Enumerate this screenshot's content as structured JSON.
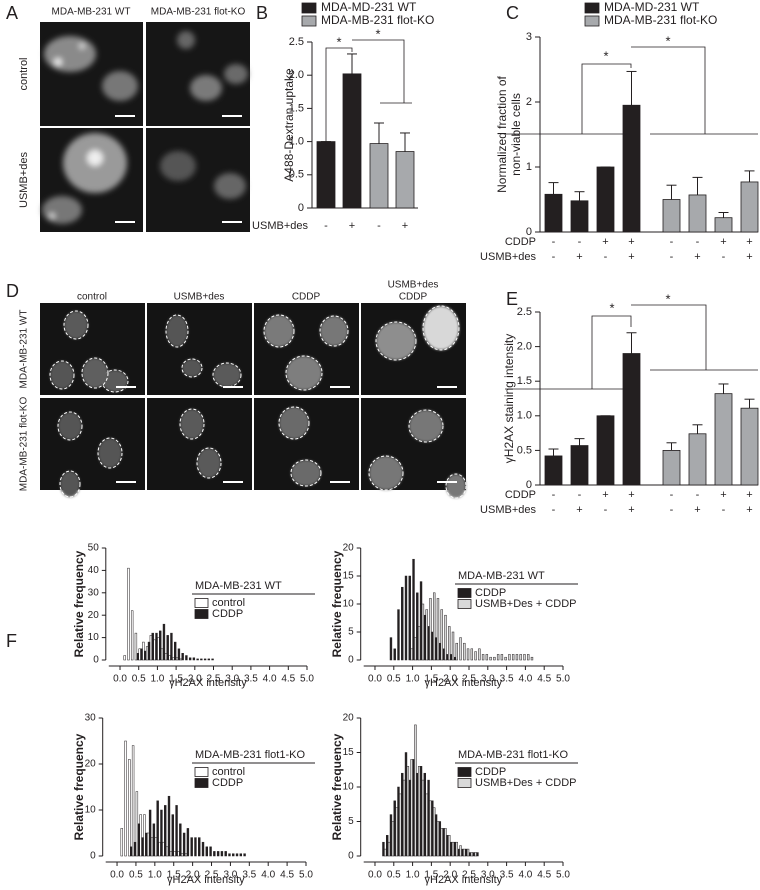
{
  "panel_letters": [
    "A",
    "B",
    "C",
    "D",
    "E",
    "F"
  ],
  "image_panels": [
    {
      "columns": [
        "MDA-MB-231 WT",
        "MDA-MB-231 flot-KO"
      ],
      "rows": [
        "control",
        "USMB+des"
      ]
    },
    {
      "columns": [
        "control",
        "USMB+des",
        "CDDP",
        [
          "USMB+des",
          "CDDP"
        ]
      ],
      "rows": [
        "MDA-MB-231 WT",
        "MDA-MB-231 flot-KO"
      ]
    }
  ],
  "chart_data": [
    {
      "type": "bar",
      "ylabel": "A488-Dextran uptake",
      "series": [
        {
          "name": "MDA-MD-231 WT",
          "color": "#231f20",
          "values": [
            1.0,
            2.02
          ],
          "errors": [
            0,
            0.3
          ]
        },
        {
          "name": "MDA-MB-231 flot-KO",
          "color": "#a7a9ac",
          "values": [
            0.97,
            0.85
          ],
          "errors": [
            0.31,
            0.28
          ]
        }
      ],
      "conditions": [
        {
          "name": "USMB+des",
          "values": [
            "-",
            "+",
            "-",
            "+"
          ]
        }
      ],
      "ylim": [
        0,
        2.5
      ],
      "yticks": [
        0,
        0.5,
        {
          "value": 1,
          "label": "1.0"
        },
        1.5,
        {
          "value": 2,
          "label": "2.0"
        },
        2.5
      ],
      "annotations": [
        "*",
        "*"
      ]
    },
    {
      "type": "bar",
      "ylabel": [
        "Normalized fraction of",
        "non-viable cells"
      ],
      "series": [
        {
          "name": "MDA-MD-231 WT",
          "color": "#231f20",
          "values": [
            0.58,
            0.48,
            1.0,
            1.95
          ],
          "errors": [
            0.18,
            0.14,
            0,
            0.52
          ]
        },
        {
          "name": "MDA-MB-231 flot-KO",
          "color": "#a7a9ac",
          "values": [
            0.5,
            0.57,
            0.22,
            0.77
          ],
          "errors": [
            0.22,
            0.27,
            0.08,
            0.17
          ]
        }
      ],
      "conditions": [
        {
          "name": "CDDP",
          "values": [
            "-",
            "-",
            "+",
            "+",
            "-",
            "-",
            "+",
            "+"
          ]
        },
        {
          "name": "USMB+des",
          "values": [
            "-",
            "+",
            "-",
            "+",
            "-",
            "+",
            "-",
            "+"
          ]
        }
      ],
      "ylim": [
        0,
        3
      ],
      "yticks": [
        0,
        1,
        2,
        3
      ],
      "annotations": [
        "*",
        "*"
      ]
    },
    {
      "type": "bar",
      "ylabel": "γH2AX staining intensity",
      "series": [
        {
          "color": "#231f20",
          "values": [
            0.42,
            0.57,
            1.0,
            1.9
          ],
          "errors": [
            0.1,
            0.1,
            0,
            0.3
          ]
        },
        {
          "color": "#a7a9ac",
          "values": [
            0.5,
            0.74,
            1.32,
            1.11
          ],
          "errors": [
            0.11,
            0.13,
            0.14,
            0.13
          ]
        }
      ],
      "conditions": [
        {
          "name": "CDDP",
          "values": [
            "-",
            "-",
            "+",
            "+",
            "-",
            "-",
            "+",
            "+"
          ]
        },
        {
          "name": "USMB+des",
          "values": [
            "-",
            "+",
            "-",
            "+",
            "-",
            "+",
            "-",
            "+"
          ]
        }
      ],
      "ylim": [
        0,
        2.5
      ],
      "yticks": [
        0,
        0.5,
        {
          "value": 1,
          "label": "1.0"
        },
        1.5,
        {
          "value": 2,
          "label": "2.0"
        },
        2.5
      ],
      "annotations": [
        "*",
        "*"
      ]
    },
    {
      "type": "histogram",
      "legend_title": "MDA-MB-231 WT",
      "xlabel": "γH2AX intensity",
      "ylabel": "Relative frequency",
      "bins": [
        0,
        0.1,
        0.2,
        0.3,
        0.4,
        0.5,
        0.6,
        0.7,
        0.8,
        0.9,
        1.0,
        1.1,
        1.2,
        1.3,
        1.4,
        1.5,
        1.6,
        1.7,
        1.8,
        1.9,
        2.0,
        2.1,
        2.2,
        2.3,
        2.4,
        2.5,
        2.6,
        2.7,
        2.8,
        2.9,
        3.0,
        3.1,
        3.2,
        3.3,
        3.4,
        3.5,
        3.6,
        3.7,
        3.8,
        3.9,
        4.0,
        4.1,
        4.2,
        4.3,
        4.4,
        4.5
      ],
      "series": [
        {
          "name": "control",
          "color": "#ffffff",
          "values": [
            0,
            2,
            41,
            22,
            12,
            5,
            8,
            6,
            11,
            9,
            10,
            5,
            3,
            2,
            1,
            1,
            0.5,
            0,
            0,
            0,
            0,
            0,
            0,
            0,
            0,
            0,
            0,
            0,
            0,
            0,
            0,
            0,
            0,
            0,
            0,
            0,
            0,
            0,
            0,
            0,
            0,
            0,
            0,
            0,
            0
          ]
        },
        {
          "name": "CDDP",
          "color": "#231f20",
          "values": [
            0,
            0,
            0,
            0,
            3,
            5,
            4,
            8,
            12,
            12,
            13,
            16,
            11,
            12,
            8,
            5,
            3,
            2,
            1,
            1,
            0.5,
            0.5,
            0.5,
            0.5,
            0.5,
            0,
            0,
            0,
            0,
            0,
            0,
            0,
            0,
            0,
            0,
            0,
            0,
            0,
            0,
            0,
            0,
            0,
            0,
            0,
            0
          ]
        }
      ],
      "xlim": [
        -0.3,
        5
      ],
      "xticks": [
        {
          "value": 0,
          "label": "0.0"
        },
        0.5,
        {
          "value": 1,
          "label": "1.0"
        },
        1.5,
        {
          "value": 2,
          "label": "2.0"
        },
        2.5,
        {
          "value": 3,
          "label": "3.0"
        },
        3.5,
        {
          "value": 4,
          "label": "4.0"
        },
        4.5,
        {
          "value": 5,
          "label": "5.0"
        }
      ],
      "ylim": [
        0,
        50
      ],
      "yticks": [
        0,
        10,
        20,
        30,
        40,
        50
      ]
    },
    {
      "type": "histogram",
      "legend_title": "MDA-MB-231 WT",
      "xlabel": "γH2AX intensity",
      "ylabel": "Relative frequency",
      "bins": [
        0,
        0.1,
        0.2,
        0.3,
        0.4,
        0.5,
        0.6,
        0.7,
        0.8,
        0.9,
        1.0,
        1.1,
        1.2,
        1.3,
        1.4,
        1.5,
        1.6,
        1.7,
        1.8,
        1.9,
        2.0,
        2.1,
        2.2,
        2.3,
        2.4,
        2.5,
        2.6,
        2.7,
        2.8,
        2.9,
        3.0,
        3.1,
        3.2,
        3.3,
        3.4,
        3.5,
        3.6,
        3.7,
        3.8,
        3.9,
        4.0,
        4.1,
        4.2,
        4.3,
        4.4,
        4.5
      ],
      "series": [
        {
          "name": "CDDP",
          "color": "#231f20",
          "values": [
            0,
            0,
            0,
            0,
            4,
            2,
            9,
            13,
            15,
            15,
            18,
            12,
            14,
            8,
            6,
            5,
            4,
            3,
            2,
            1,
            1,
            0.5,
            0,
            0,
            0,
            0,
            0,
            0,
            0,
            0,
            0,
            0,
            0,
            0,
            0,
            0,
            0,
            0,
            0,
            0,
            0,
            0,
            0,
            0,
            0
          ]
        },
        {
          "name": "USMB+Des + CDDP",
          "color": "#d9d9d9",
          "values": [
            0,
            0,
            0,
            0,
            0,
            0,
            0,
            0,
            0,
            2,
            4,
            6,
            10,
            9,
            11,
            12,
            11,
            9,
            8,
            6,
            5,
            3,
            4,
            3,
            2,
            2,
            1.5,
            2,
            1,
            1,
            0.5,
            0.5,
            1,
            1,
            0.5,
            1,
            1,
            1,
            1,
            1,
            1,
            0.5,
            0,
            0,
            0
          ]
        }
      ],
      "xlim": [
        -0.3,
        5
      ],
      "xticks": [
        {
          "value": 0,
          "label": "0.0"
        },
        0.5,
        {
          "value": 1,
          "label": "1.0"
        },
        1.5,
        {
          "value": 2,
          "label": "2.0"
        },
        2.5,
        {
          "value": 3,
          "label": "3.0"
        },
        3.5,
        {
          "value": 4,
          "label": "4.0"
        },
        4.5,
        {
          "value": 5,
          "label": "5.0"
        }
      ],
      "ylim": [
        0,
        20
      ],
      "yticks": [
        0,
        5,
        10,
        15,
        20
      ]
    },
    {
      "type": "histogram",
      "legend_title": "MDA-MB-231 flot1-KO",
      "xlabel": "γH2AX intensity",
      "ylabel": "Relative frequency",
      "bins": [
        0,
        0.1,
        0.2,
        0.3,
        0.4,
        0.5,
        0.6,
        0.7,
        0.8,
        0.9,
        1.0,
        1.1,
        1.2,
        1.3,
        1.4,
        1.5,
        1.6,
        1.7,
        1.8,
        1.9,
        2.0,
        2.1,
        2.2,
        2.3,
        2.4,
        2.5,
        2.6,
        2.7,
        2.8,
        2.9,
        3.0,
        3.1,
        3.2,
        3.3,
        3.4,
        3.5,
        3.6,
        3.7,
        3.8,
        3.9,
        4.0,
        4.1,
        4.2,
        4.3,
        4.4,
        4.5
      ],
      "series": [
        {
          "name": "control",
          "color": "#ffffff",
          "values": [
            0,
            6,
            25,
            21,
            24,
            14,
            9,
            9,
            5,
            4,
            4,
            3,
            3,
            2,
            1,
            1,
            1,
            0.5,
            0.5,
            0,
            0,
            0,
            0,
            0,
            0,
            0,
            0,
            0,
            0,
            0,
            0,
            0,
            0,
            0,
            0,
            0,
            0,
            0,
            0,
            0,
            0,
            0,
            0,
            0,
            0
          ]
        },
        {
          "name": "CDDP",
          "color": "#231f20",
          "values": [
            0,
            0,
            0,
            2,
            3,
            7,
            4,
            5,
            10,
            7,
            12,
            10,
            11,
            13,
            9,
            11,
            7,
            5,
            6,
            4,
            4,
            4,
            3,
            2,
            2,
            1,
            1,
            1,
            1,
            0.5,
            0.5,
            0.5,
            0.5,
            0.5,
            0,
            0,
            0,
            0,
            0,
            0,
            0,
            0,
            0,
            0,
            0
          ]
        }
      ],
      "xlim": [
        -0.3,
        5
      ],
      "xticks": [
        {
          "value": 0,
          "label": "0.0"
        },
        0.5,
        {
          "value": 1,
          "label": "1.0"
        },
        1.5,
        {
          "value": 2,
          "label": "2.0"
        },
        2.5,
        {
          "value": 3,
          "label": "3.0"
        },
        3.5,
        {
          "value": 4,
          "label": "4.0"
        },
        4.5,
        {
          "value": 5,
          "label": "5.0"
        }
      ],
      "ylim": [
        0,
        30
      ],
      "yticks": [
        0,
        10,
        20,
        30
      ]
    },
    {
      "type": "histogram",
      "legend_title": "MDA-MB-231 flot1-KO",
      "xlabel": "γH2AX intensity",
      "ylabel": "Relative frequency",
      "bins": [
        0,
        0.1,
        0.2,
        0.3,
        0.4,
        0.5,
        0.6,
        0.7,
        0.8,
        0.9,
        1.0,
        1.1,
        1.2,
        1.3,
        1.4,
        1.5,
        1.6,
        1.7,
        1.8,
        1.9,
        2.0,
        2.1,
        2.2,
        2.3,
        2.4,
        2.5,
        2.6,
        2.7,
        2.8,
        2.9,
        3.0,
        3.1,
        3.2,
        3.3,
        3.4,
        3.5,
        3.6,
        3.7,
        3.8,
        3.9,
        4.0,
        4.1,
        4.2,
        4.3,
        4.4,
        4.5
      ],
      "series": [
        {
          "name": "CDDP",
          "color": "#231f20",
          "values": [
            0,
            0,
            2,
            3,
            6,
            8,
            10,
            12,
            15,
            11,
            14,
            12,
            13,
            12,
            11,
            8,
            6,
            5,
            4,
            3,
            2,
            2,
            1,
            1,
            1,
            0.5,
            0.5,
            0.5,
            0,
            0,
            0,
            0,
            0,
            0,
            0,
            0,
            0,
            0,
            0,
            0,
            0,
            0,
            0,
            0,
            0
          ]
        },
        {
          "name": "USMB+Des + CDDP",
          "color": "#d9d9d9",
          "values": [
            0,
            0,
            1,
            2,
            5,
            7,
            9,
            11,
            13,
            14,
            19,
            13,
            11,
            9,
            8,
            7,
            5,
            4,
            4,
            3,
            2,
            2,
            1.5,
            1,
            1,
            0.5,
            0.5,
            0,
            0,
            0,
            0,
            0,
            0,
            0,
            0,
            0,
            0,
            0,
            0,
            0,
            0,
            0,
            0,
            0,
            0
          ]
        }
      ],
      "xlim": [
        -0.3,
        5
      ],
      "xticks": [
        {
          "value": 0,
          "label": "0.0"
        },
        0.5,
        {
          "value": 1,
          "label": "1.0"
        },
        1.5,
        {
          "value": 2,
          "label": "2.0"
        },
        2.5,
        {
          "value": 3,
          "label": "3.0"
        },
        3.5,
        {
          "value": 4,
          "label": "4.0"
        },
        4.5,
        {
          "value": 5,
          "label": "5.0"
        }
      ],
      "ylim": [
        0,
        20
      ],
      "yticks": [
        0,
        5,
        10,
        15,
        20
      ]
    }
  ]
}
